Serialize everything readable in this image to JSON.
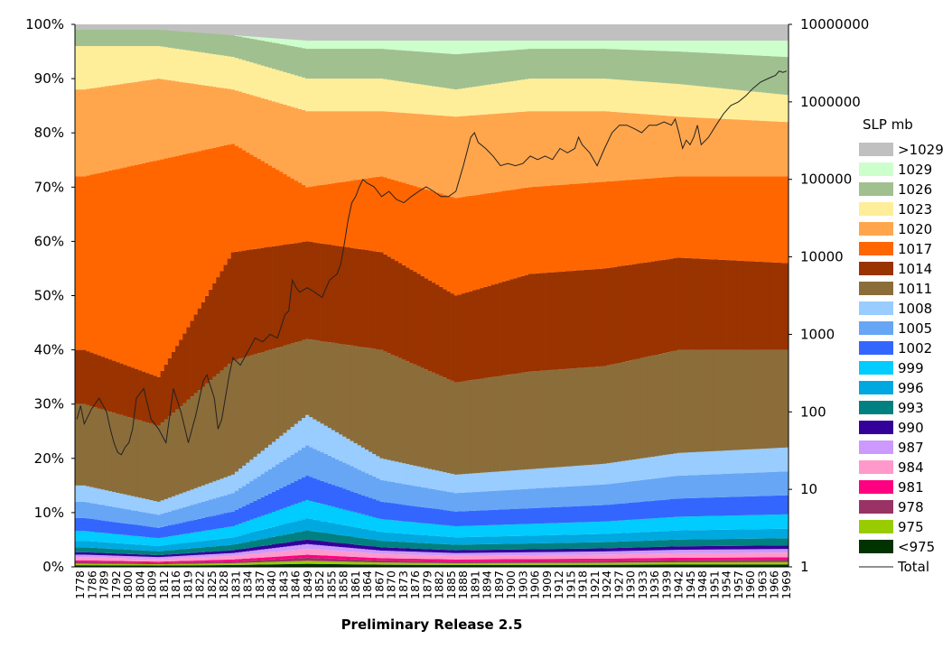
{
  "chart_data": {
    "type": "area",
    "stacked": true,
    "normalized_percent": true,
    "title": "Preliminary Release 2.5",
    "xlabel": "",
    "ylabel": "",
    "xlim": [
      1778,
      1969
    ],
    "x_tick_labels": [
      "1778",
      "1786",
      "1789",
      "1792",
      "1800",
      "1804",
      "1809",
      "1812",
      "1816",
      "1819",
      "1822",
      "1825",
      "1828",
      "1831",
      "1834",
      "1837",
      "1840",
      "1843",
      "1846",
      "1849",
      "1852",
      "1855",
      "1858",
      "1861",
      "1864",
      "1867",
      "1870",
      "1873",
      "1876",
      "1879",
      "1882",
      "1885",
      "1888",
      "1891",
      "1894",
      "1897",
      "1900",
      "1903",
      "1906",
      "1909",
      "1912",
      "1915",
      "1918",
      "1921",
      "1924",
      "1927",
      "1930",
      "1933",
      "1936",
      "1939",
      "1942",
      "1945",
      "1948",
      "1951",
      "1954",
      "1957",
      "1960",
      "1963",
      "1966",
      "1969"
    ],
    "y_left": {
      "lim": [
        0,
        100
      ],
      "ticks": [
        "0%",
        "10%",
        "20%",
        "30%",
        "40%",
        "50%",
        "60%",
        "70%",
        "80%",
        "90%",
        "100%"
      ]
    },
    "y_right": {
      "scale": "log",
      "lim": [
        1,
        10000000
      ],
      "ticks": [
        "1",
        "10",
        "100",
        "1000",
        "10000",
        "100000",
        "1000000",
        "10000000"
      ]
    },
    "legend": {
      "title": "SLP mb",
      "placement": "right",
      "entries": [
        {
          "label": ">1029",
          "color": "#c0c0c0"
        },
        {
          "label": "1029",
          "color": "#ccffcc"
        },
        {
          "label": "1026",
          "color": "#a0c090"
        },
        {
          "label": "1023",
          "color": "#ffee99"
        },
        {
          "label": "1020",
          "color": "#ffa64d"
        },
        {
          "label": "1017",
          "color": "#ff6600"
        },
        {
          "label": "1014",
          "color": "#993300"
        },
        {
          "label": "1011",
          "color": "#8b6d3a"
        },
        {
          "label": "1008",
          "color": "#99ccff"
        },
        {
          "label": "1005",
          "color": "#66a6f5"
        },
        {
          "label": "1002",
          "color": "#3366ff"
        },
        {
          "label": "999",
          "color": "#00ccff"
        },
        {
          "label": "996",
          "color": "#00a8e0"
        },
        {
          "label": "993",
          "color": "#008080"
        },
        {
          "label": "990",
          "color": "#330099"
        },
        {
          "label": "987",
          "color": "#cc99ff"
        },
        {
          "label": "984",
          "color": "#ff99cc"
        },
        {
          "label": "981",
          "color": "#ff0080"
        },
        {
          "label": "978",
          "color": "#993366"
        },
        {
          "label": "975",
          "color": "#99cc00"
        },
        {
          "label": "<975",
          "color": "#003300"
        }
      ],
      "total_label": "Total"
    },
    "series_approx_percent_stack": {
      "note_years": [
        1780,
        1800,
        1820,
        1840,
        1860,
        1880,
        1900,
        1920,
        1940,
        1969
      ],
      "cumulative_top_of_1008": [
        15,
        12,
        17,
        28,
        20,
        17,
        18,
        19,
        21,
        22
      ],
      "cumulative_top_of_1011": [
        30,
        26,
        38,
        42,
        40,
        34,
        36,
        37,
        40,
        40
      ],
      "cumulative_top_of_1014": [
        40,
        35,
        58,
        60,
        58,
        50,
        54,
        55,
        57,
        56
      ],
      "cumulative_top_of_1017": [
        72,
        75,
        78,
        70,
        72,
        68,
        70,
        71,
        72,
        72
      ],
      "cumulative_top_of_1020": [
        88,
        90,
        88,
        84,
        84,
        83,
        84,
        84,
        83,
        82
      ],
      "cumulative_top_of_1023": [
        96,
        96,
        94,
        90,
        90,
        88,
        90,
        90,
        89,
        87
      ],
      "cumulative_top_of_1029": [
        99,
        99,
        98,
        97,
        97,
        97,
        97,
        97,
        97,
        97
      ]
    },
    "total": {
      "name": "Total",
      "x": [
        1778,
        1779,
        1780,
        1782,
        1784,
        1786,
        1787,
        1788,
        1789,
        1790,
        1791,
        1792,
        1793,
        1794,
        1796,
        1798,
        1800,
        1802,
        1804,
        1806,
        1808,
        1810,
        1812,
        1813,
        1815,
        1816,
        1817,
        1819,
        1820,
        1822,
        1824,
        1826,
        1828,
        1830,
        1832,
        1834,
        1835,
        1836,
        1837,
        1838,
        1840,
        1842,
        1844,
        1846,
        1848,
        1849,
        1850,
        1851,
        1852,
        1853,
        1854,
        1855,
        1856,
        1858,
        1860,
        1862,
        1864,
        1866,
        1868,
        1870,
        1872,
        1874,
        1876,
        1878,
        1880,
        1882,
        1884,
        1885,
        1886,
        1888,
        1890,
        1892,
        1894,
        1896,
        1898,
        1900,
        1902,
        1904,
        1906,
        1908,
        1910,
        1912,
        1913,
        1914,
        1916,
        1918,
        1920,
        1922,
        1924,
        1926,
        1928,
        1930,
        1932,
        1934,
        1936,
        1938,
        1939,
        1940,
        1941,
        1942,
        1943,
        1944,
        1945,
        1946,
        1948,
        1950,
        1952,
        1954,
        1956,
        1958,
        1960,
        1962,
        1964,
        1966,
        1967,
        1968,
        1969
      ],
      "y": [
        80,
        120,
        70,
        110,
        150,
        100,
        60,
        40,
        30,
        28,
        35,
        40,
        60,
        150,
        200,
        80,
        60,
        40,
        200,
        100,
        40,
        90,
        250,
        300,
        150,
        60,
        80,
        300,
        500,
        400,
        600,
        900,
        800,
        1000,
        900,
        1800,
        2000,
        5000,
        4000,
        3500,
        4000,
        3500,
        3000,
        5000,
        6000,
        8000,
        15000,
        30000,
        50000,
        60000,
        80000,
        100000,
        90000,
        80000,
        60000,
        70000,
        55000,
        50000,
        60000,
        70000,
        80000,
        70000,
        60000,
        60000,
        70000,
        150000,
        350000,
        400000,
        300000,
        250000,
        200000,
        150000,
        160000,
        150000,
        160000,
        200000,
        180000,
        200000,
        180000,
        250000,
        220000,
        250000,
        350000,
        280000,
        220000,
        150000,
        250000,
        400000,
        500000,
        500000,
        450000,
        400000,
        500000,
        500000,
        550000,
        500000,
        600000,
        400000,
        250000,
        320000,
        280000,
        350000,
        500000,
        280000,
        350000,
        500000,
        700000,
        900000,
        1000000,
        1200000,
        1500000,
        1800000,
        2000000,
        2200000,
        2500000,
        2400000,
        2500000
      ]
    }
  }
}
